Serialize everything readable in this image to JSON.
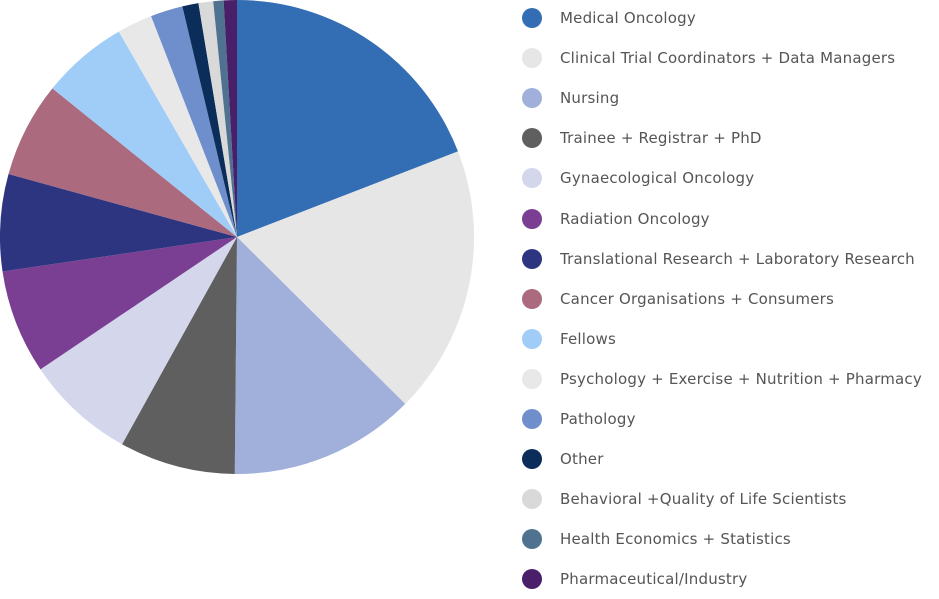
{
  "chart_data": {
    "type": "pie",
    "legend_position": "right",
    "start": "12 o'clock, clockwise",
    "unit": "percent (estimated)",
    "slices": [
      {
        "label": "Medical Oncology",
        "value": 19.1,
        "color": "#336db3"
      },
      {
        "label": "Clinical Trial Coordinators + Data Managers",
        "value": 18.3,
        "color": "#e6e6e6"
      },
      {
        "label": "Nursing",
        "value": 12.7,
        "color": "#a0b0da"
      },
      {
        "label": "Trainee + Registrar + PhD",
        "value": 7.9,
        "color": "#5f5f5f"
      },
      {
        "label": "Gynaecological Oncology",
        "value": 7.5,
        "color": "#d4d6ec"
      },
      {
        "label": "Radiation Oncology",
        "value": 7.1,
        "color": "#7a3f93"
      },
      {
        "label": "Translational Research + Laboratory Research",
        "value": 6.6,
        "color": "#2e3580"
      },
      {
        "label": "Cancer Organisations + Consumers",
        "value": 6.5,
        "color": "#ab6a7e"
      },
      {
        "label": "Fellows",
        "value": 5.9,
        "color": "#9fcdf8"
      },
      {
        "label": "Psychology + Exercise + Nutrition + Pharmacy",
        "value": 2.4,
        "color": "#e8e8e8"
      },
      {
        "label": "Pathology",
        "value": 2.2,
        "color": "#6f8fcc"
      },
      {
        "label": "Other",
        "value": 1.1,
        "color": "#0a2d5a"
      },
      {
        "label": "Behavioral +Quality of Life Scientists",
        "value": 1.0,
        "color": "#d9d9d9"
      },
      {
        "label": "Health Economics + Statistics",
        "value": 0.7,
        "color": "#4f7290"
      },
      {
        "label": "Pharmaceutical/Industry",
        "value": 0.9,
        "color": "#4a1f6a"
      }
    ]
  }
}
